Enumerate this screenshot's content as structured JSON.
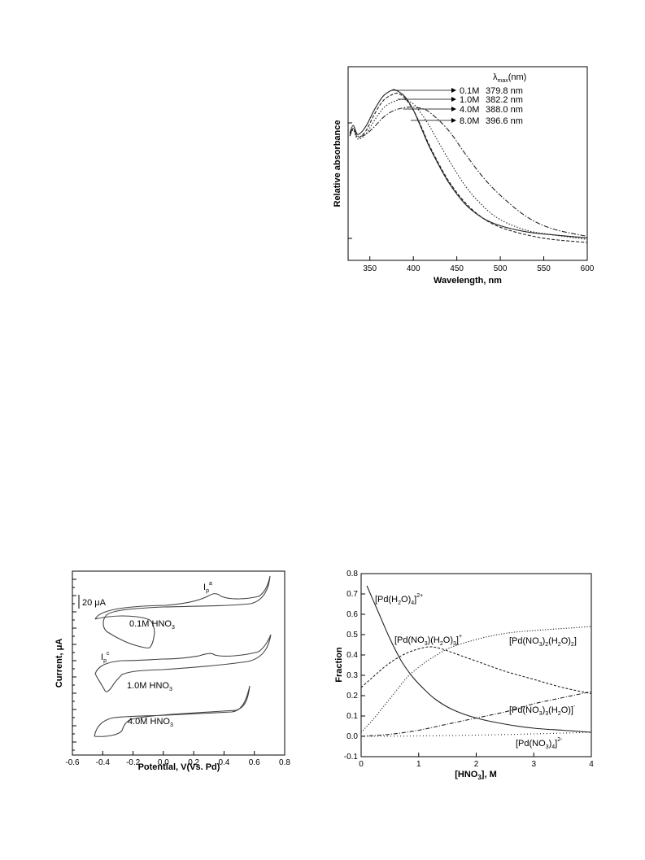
{
  "chart_data": [
    {
      "type": "line",
      "xlabel": "Wavelength, nm",
      "ylabel": "Relative absorbance",
      "xlim": [
        325,
        600
      ],
      "x_ticks": [
        "350",
        "400",
        "450",
        "500",
        "550",
        "600"
      ],
      "grid": false,
      "legend_header": "λmax(nm)",
      "legend_header_parts": [
        "λ",
        "max",
        "(nm)"
      ],
      "series": [
        {
          "name": "0.1M",
          "lambda_max": "379.8 nm",
          "x": [
            327,
            331,
            336,
            345,
            355,
            365,
            375,
            380,
            390,
            400,
            410,
            420,
            440,
            460,
            480,
            500,
            530,
            560,
            600
          ],
          "y": [
            0.72,
            0.77,
            0.71,
            0.76,
            0.87,
            0.96,
            1.0,
            1.0,
            0.96,
            0.87,
            0.74,
            0.61,
            0.4,
            0.25,
            0.16,
            0.11,
            0.07,
            0.05,
            0.03
          ]
        },
        {
          "name": "1.0M",
          "lambda_max": "382.2 nm",
          "x": [
            327,
            331,
            336,
            345,
            355,
            365,
            375,
            382,
            390,
            400,
            410,
            420,
            440,
            460,
            480,
            500,
            530,
            560,
            600
          ],
          "y": [
            0.7,
            0.75,
            0.69,
            0.73,
            0.84,
            0.93,
            0.97,
            0.98,
            0.95,
            0.87,
            0.75,
            0.62,
            0.41,
            0.26,
            0.16,
            0.1,
            0.05,
            0.02,
            0.0
          ]
        },
        {
          "name": "4.0M",
          "lambda_max": "388.0 nm",
          "x": [
            327,
            331,
            336,
            345,
            355,
            365,
            375,
            388,
            400,
            410,
            420,
            440,
            460,
            480,
            500,
            530,
            560,
            600
          ],
          "y": [
            0.7,
            0.74,
            0.68,
            0.71,
            0.8,
            0.88,
            0.92,
            0.94,
            0.91,
            0.84,
            0.75,
            0.55,
            0.37,
            0.24,
            0.15,
            0.08,
            0.05,
            0.02
          ]
        },
        {
          "name": "8.0M",
          "lambda_max": "396.6 nm",
          "x": [
            327,
            331,
            336,
            345,
            355,
            365,
            375,
            385,
            397,
            410,
            420,
            440,
            460,
            480,
            500,
            530,
            560,
            600
          ],
          "y": [
            0.71,
            0.75,
            0.7,
            0.71,
            0.76,
            0.82,
            0.86,
            0.88,
            0.89,
            0.88,
            0.85,
            0.74,
            0.58,
            0.43,
            0.31,
            0.17,
            0.09,
            0.04
          ]
        }
      ]
    },
    {
      "type": "line",
      "xlabel": "Potential, V(Vs. Pd)",
      "ylabel": "Current, μA",
      "xlim": [
        -0.6,
        0.8
      ],
      "x_ticks": [
        "-0.6",
        "-0.4",
        "-0.2",
        "0.0",
        "0.2",
        "0.4",
        "0.6",
        "0.8"
      ],
      "grid": false,
      "scale_bar_label": "20 μA",
      "annotations": {
        "anodic_peak": {
          "base": "I",
          "sub": "p",
          "sup": "a"
        },
        "cathodic_peak": {
          "base": "I",
          "sub": "p",
          "sup": "c"
        }
      },
      "series": [
        {
          "name": "0.1M HNO3",
          "label_parts": [
            "0.1M HNO",
            "3"
          ],
          "label": "0.1M HNO3"
        },
        {
          "name": "1.0M HNO3",
          "label_parts": [
            "1.0M HNO",
            "3"
          ],
          "label": "1.0M HNO3"
        },
        {
          "name": "4.0M HNO3",
          "label_parts": [
            "4.0M HNO",
            "3"
          ],
          "label": "4.0M HNO3"
        }
      ]
    },
    {
      "type": "line",
      "xlabel_parts": [
        "[HNO",
        "3",
        "], M"
      ],
      "xlabel": "[HNO3], M",
      "ylabel": "Fraction",
      "xlim": [
        0,
        4
      ],
      "ylim": [
        -0.1,
        0.8
      ],
      "x_ticks": [
        "0",
        "1",
        "2",
        "3",
        "4"
      ],
      "y_ticks": [
        "-0.1",
        "0.0",
        "0.1",
        "0.2",
        "0.3",
        "0.4",
        "0.5",
        "0.6",
        "0.7",
        "0.8"
      ],
      "grid": false,
      "series": [
        {
          "name": "[Pd(H2O)4]2+",
          "label_parts": [
            "[Pd(H",
            "2",
            "O)",
            "4",
            "]",
            "2+"
          ],
          "x": [
            0.1,
            0.3,
            0.5,
            0.7,
            0.9,
            1.1,
            1.3,
            1.6,
            2.0,
            2.5,
            3.0,
            3.5,
            4.0
          ],
          "y": [
            0.74,
            0.61,
            0.48,
            0.37,
            0.29,
            0.23,
            0.18,
            0.13,
            0.09,
            0.06,
            0.04,
            0.03,
            0.02
          ]
        },
        {
          "name": "[Pd(NO3)(H2O)3]+",
          "label_parts": [
            "[Pd(NO",
            "3",
            ")(H",
            "2",
            "O)",
            "3",
            "]",
            "+"
          ],
          "x": [
            0.0,
            0.2,
            0.4,
            0.6,
            0.8,
            1.0,
            1.2,
            1.4,
            1.7,
            2.0,
            2.5,
            3.0,
            3.5,
            4.0
          ],
          "y": [
            0.24,
            0.29,
            0.34,
            0.38,
            0.41,
            0.43,
            0.44,
            0.43,
            0.4,
            0.37,
            0.32,
            0.28,
            0.24,
            0.21
          ]
        },
        {
          "name": "[Pd(NO3)2(H2O)2]",
          "label_parts": [
            "[Pd(NO",
            "3",
            ")",
            "2",
            "(H",
            "2",
            "O)",
            "2",
            "]"
          ],
          "x": [
            0.0,
            0.2,
            0.4,
            0.6,
            0.8,
            1.0,
            1.2,
            1.5,
            1.8,
            2.2,
            2.6,
            3.0,
            3.5,
            4.0
          ],
          "y": [
            0.02,
            0.08,
            0.15,
            0.22,
            0.29,
            0.34,
            0.38,
            0.43,
            0.46,
            0.49,
            0.51,
            0.52,
            0.53,
            0.54
          ]
        },
        {
          "name": "[Pd(NO3)3(H2O)]-",
          "label_parts": [
            "[Pd(NO",
            "3",
            ")",
            "3",
            "(H",
            "2",
            "O)]",
            "-"
          ],
          "x": [
            0.0,
            0.5,
            1.0,
            1.5,
            2.0,
            2.5,
            3.0,
            3.5,
            4.0
          ],
          "y": [
            0.0,
            0.01,
            0.03,
            0.06,
            0.09,
            0.12,
            0.16,
            0.19,
            0.22
          ]
        },
        {
          "name": "[Pd(NO3)4]2-",
          "label_parts": [
            "[Pd(NO",
            "3",
            ")",
            "4",
            "]",
            "2-"
          ],
          "x": [
            0.0,
            1.0,
            2.0,
            3.0,
            4.0
          ],
          "y": [
            0.0,
            0.002,
            0.006,
            0.012,
            0.02
          ]
        }
      ]
    }
  ]
}
